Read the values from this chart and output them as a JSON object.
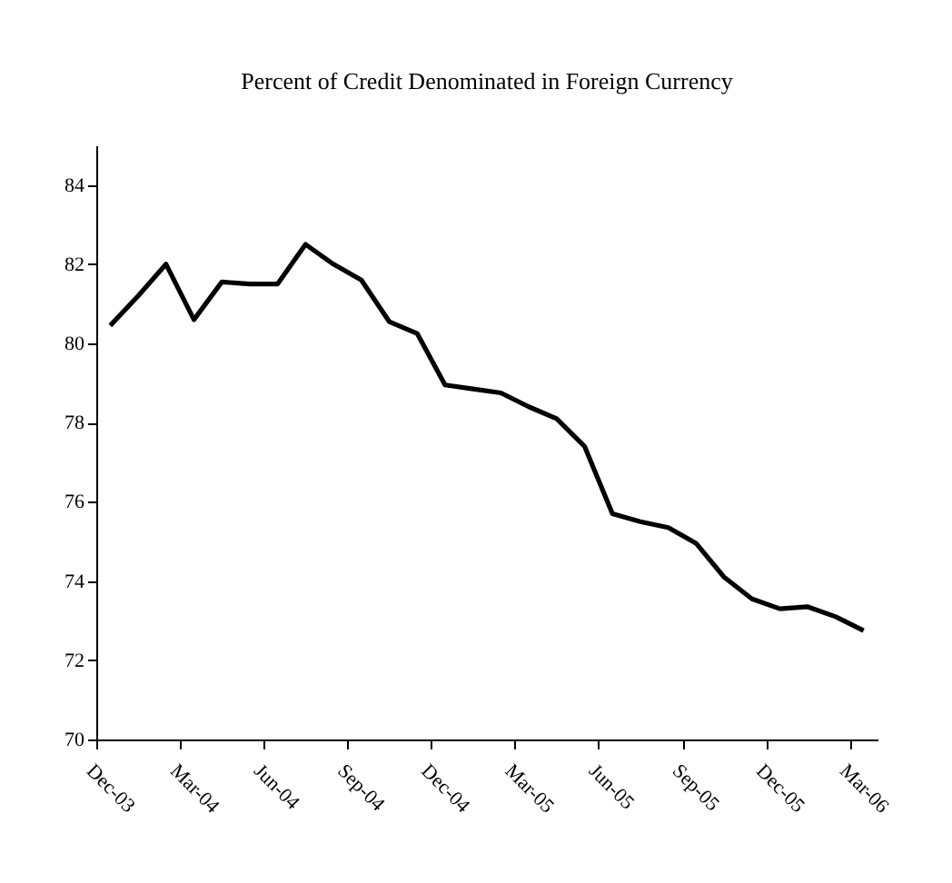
{
  "chart_data": {
    "type": "line",
    "title": "Percent of Credit Denominated in Foreign Currency",
    "categories": [
      "Dec-03",
      null,
      null,
      "Mar-04",
      null,
      null,
      "Jun-04",
      null,
      null,
      "Sep-04",
      null,
      null,
      "Dec-04",
      null,
      null,
      "Mar-05",
      null,
      null,
      "Jun-05",
      null,
      null,
      "Sep-05",
      null,
      null,
      "Dec-05",
      null,
      null,
      "Mar-06"
    ],
    "values": [
      80.45,
      81.2,
      82.0,
      80.6,
      81.55,
      81.5,
      81.5,
      82.5,
      82.0,
      81.6,
      80.55,
      80.25,
      78.95,
      78.85,
      78.75,
      78.4,
      78.1,
      77.4,
      75.7,
      75.5,
      75.35,
      74.95,
      74.1,
      73.55,
      73.3,
      73.35,
      73.1,
      72.75
    ],
    "color": "#000000",
    "ylim": [
      70,
      85
    ],
    "yticks": [
      70,
      72,
      74,
      76,
      78,
      80,
      82,
      84
    ],
    "grid": false,
    "marker": "none",
    "line_style": "solid"
  }
}
